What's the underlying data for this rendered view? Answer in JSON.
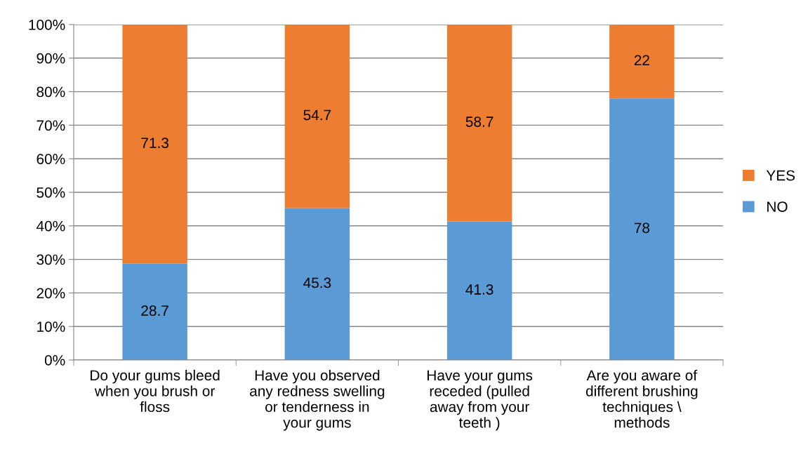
{
  "chart_data": {
    "type": "bar",
    "stacked": true,
    "categories": [
      "Do your gums bleed\nwhen you brush or\nfloss",
      "Have you observed\nany redness swelling\nor tenderness in\nyour gums",
      "Have your gums\nreceded (pulled\naway from your\nteeth )",
      "Are you aware of\ndifferent brushing\ntechniques \\\nmethods"
    ],
    "series": [
      {
        "name": "NO",
        "color": "#5b9bd5",
        "values": [
          28.7,
          45.3,
          41.3,
          78
        ]
      },
      {
        "name": "YES",
        "color": "#ed7d31",
        "values": [
          71.3,
          54.7,
          58.7,
          22
        ]
      }
    ],
    "ylim": [
      0,
      100
    ],
    "yticks": [
      {
        "value": 0,
        "label": "0%"
      },
      {
        "value": 10,
        "label": "10%"
      },
      {
        "value": 20,
        "label": "20%"
      },
      {
        "value": 30,
        "label": "30%"
      },
      {
        "value": 40,
        "label": "40%"
      },
      {
        "value": 50,
        "label": "50%"
      },
      {
        "value": 60,
        "label": "60%"
      },
      {
        "value": 70,
        "label": "70%"
      },
      {
        "value": 80,
        "label": "80%"
      },
      {
        "value": 90,
        "label": "90%"
      },
      {
        "value": 100,
        "label": "100%"
      }
    ],
    "grid": "y",
    "legend": "right",
    "data_labels": true
  }
}
